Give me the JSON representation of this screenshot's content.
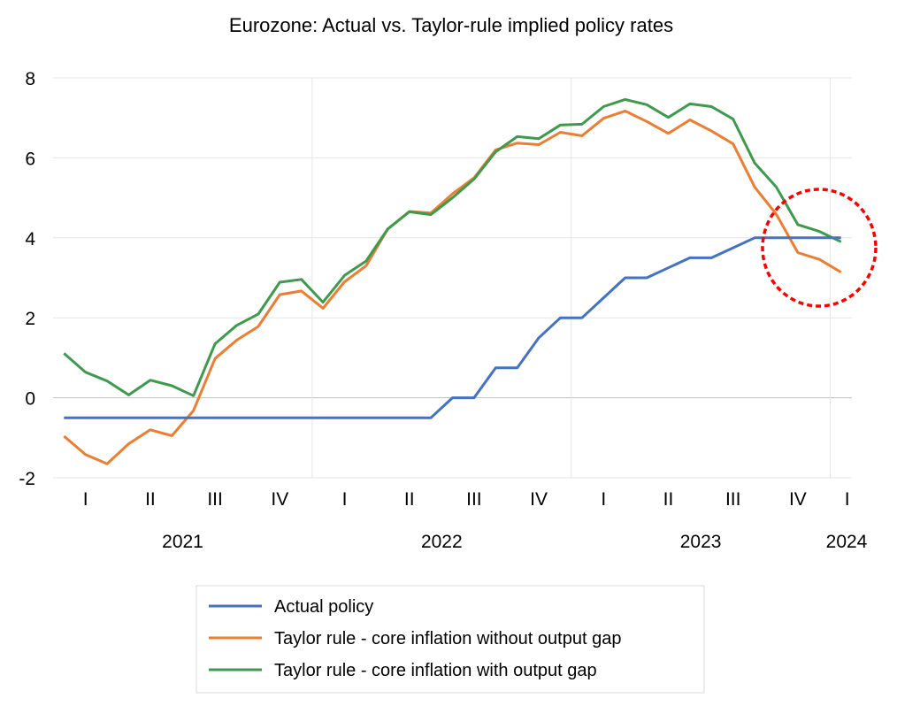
{
  "chart_data": {
    "type": "line",
    "title": "Eurozone: Actual vs. Taylor-rule implied policy rates",
    "xlabel": "",
    "ylabel": "",
    "ylim": [
      -2,
      8
    ],
    "yticks": [
      "-2",
      "0",
      "2",
      "4",
      "6",
      "8"
    ],
    "ytick_values": [
      -2,
      0,
      2,
      4,
      6,
      8
    ],
    "grid": true,
    "x_frequency": "monthly, Jan 2021 – Jan 2024",
    "quarter_labels": [
      "I",
      "II",
      "III",
      "IV",
      "I",
      "II",
      "III",
      "IV",
      "I",
      "II",
      "III",
      "IV",
      "I"
    ],
    "year_labels": [
      "2021",
      "2022",
      "2023",
      "2024"
    ],
    "legend_position": "bottom",
    "series": [
      {
        "name": "Actual policy",
        "color": "#4472C4",
        "values": [
          -0.5,
          -0.5,
          -0.5,
          -0.5,
          -0.5,
          -0.5,
          -0.5,
          -0.5,
          -0.5,
          -0.5,
          -0.5,
          -0.5,
          -0.5,
          -0.5,
          -0.5,
          -0.5,
          -0.5,
          -0.5,
          0,
          0,
          0.75,
          0.75,
          1.5,
          2,
          2,
          2.5,
          3,
          3,
          3.25,
          3.5,
          3.5,
          3.75,
          4,
          4,
          4,
          4,
          4
        ]
      },
      {
        "name": "Taylor rule - core inflation without output gap",
        "color": "#ED7D31",
        "values": [
          -0.96,
          -1.42,
          -1.65,
          -1.15,
          -0.8,
          -0.95,
          -0.32,
          0.98,
          1.44,
          1.78,
          2.58,
          2.67,
          2.24,
          2.9,
          3.3,
          4.22,
          4.66,
          4.62,
          5.1,
          5.5,
          6.2,
          6.37,
          6.33,
          6.64,
          6.55,
          6.99,
          7.17,
          6.91,
          6.61,
          6.95,
          6.67,
          6.35,
          5.27,
          4.59,
          3.63,
          3.46,
          3.14
        ]
      },
      {
        "name": "Taylor rule - core inflation with output gap",
        "color": "#3E9A4C",
        "values": [
          1.11,
          0.64,
          0.42,
          0.07,
          0.44,
          0.3,
          0.05,
          1.35,
          1.81,
          2.09,
          2.89,
          2.96,
          2.39,
          3.06,
          3.42,
          4.22,
          4.65,
          4.58,
          5.0,
          5.47,
          6.15,
          6.53,
          6.48,
          6.82,
          6.84,
          7.28,
          7.46,
          7.33,
          7.01,
          7.35,
          7.28,
          6.97,
          5.87,
          5.27,
          4.33,
          4.16,
          3.9
        ]
      }
    ],
    "annotation": {
      "type": "dashed-circle",
      "color": "#FF0000",
      "around": "late 2023 – Jan 2024"
    }
  }
}
